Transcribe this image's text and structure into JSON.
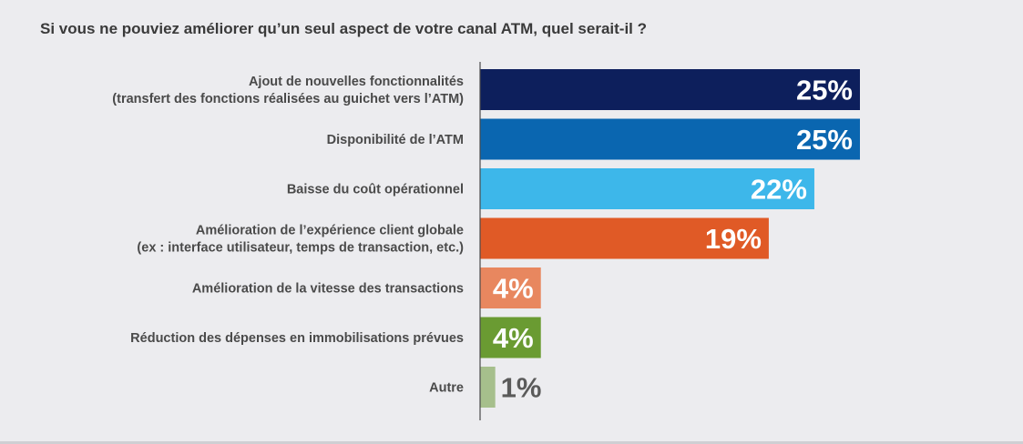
{
  "chart_data": {
    "type": "bar",
    "orientation": "horizontal",
    "title": "Si vous ne pouviez améliorer qu’un seul aspect de votre canal ATM, quel serait-il ?",
    "unit": "%",
    "xlim": [
      0,
      25
    ],
    "grid": false,
    "legend": "none",
    "categories": [
      [
        "Ajout de nouvelles fonctionnalités",
        "(transfert des fonctions réalisées au guichet vers l’ATM)"
      ],
      [
        "Disponibilité de l’ATM"
      ],
      [
        "Baisse du coût opérationnel"
      ],
      [
        "Amélioration de l’expérience client globale",
        "(ex : interface utilisateur, temps de transaction, etc.)"
      ],
      [
        "Amélioration de la vitesse des transactions"
      ],
      [
        "Réduction des dépenses en immobilisations prévues"
      ],
      [
        "Autre"
      ]
    ],
    "values": [
      25,
      25,
      22,
      19,
      4,
      4,
      1
    ],
    "value_labels": [
      "25%",
      "25%",
      "22%",
      "19%",
      "4%",
      "4%",
      "1%"
    ],
    "colors": [
      "#0d1f5c",
      "#0a66b0",
      "#3db7ea",
      "#e05a26",
      "#e8875f",
      "#6a9b32",
      "#a6bf8c"
    ],
    "label_colors": [
      "#ffffff",
      "#ffffff",
      "#ffffff",
      "#ffffff",
      "#ffffff",
      "#ffffff",
      "#5a5a5a"
    ]
  }
}
